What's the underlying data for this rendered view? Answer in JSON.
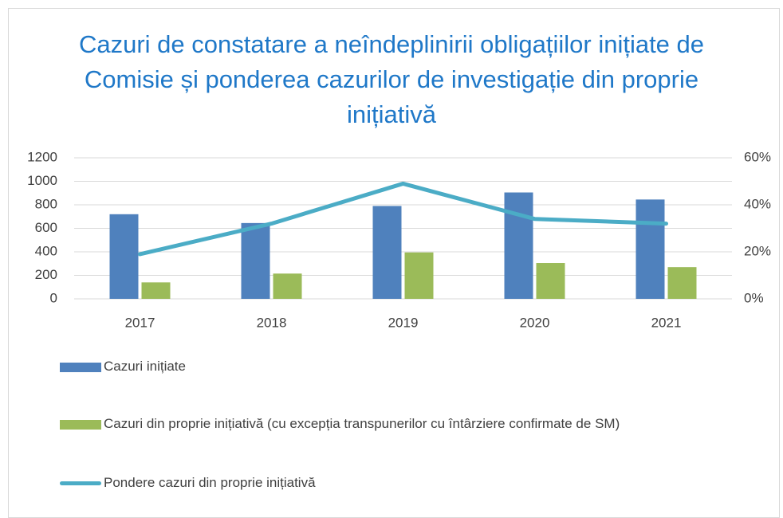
{
  "chart_data": {
    "type": "bar-line",
    "title": "Cazuri de constatare a neîndeplinirii obligațiilor inițiate de Comisie și ponderea cazurilor de investigație din proprie inițiativă",
    "categories": [
      "2017",
      "2018",
      "2019",
      "2020",
      "2021"
    ],
    "series": [
      {
        "name": "Cazuri inițiate",
        "color": "#4f81bd",
        "type": "bar",
        "values": [
          720,
          645,
          790,
          905,
          845
        ]
      },
      {
        "name": "Cazuri din proprie inițiativă (cu excepția transpunerilor cu întârziere confirmate de SM)",
        "color": "#9bbb59",
        "type": "bar",
        "values": [
          140,
          215,
          395,
          305,
          270
        ]
      },
      {
        "name": "Pondere cazuri din proprie inițiativă",
        "color": "#4bacc6",
        "type": "line",
        "axis": "y2",
        "values": [
          19,
          32,
          49,
          34,
          32
        ]
      }
    ],
    "ylim": [
      0,
      1200
    ],
    "yticks": [
      0,
      200,
      400,
      600,
      800,
      1000,
      1200
    ],
    "y2lim": [
      0,
      60
    ],
    "y2ticks": [
      {
        "value": 0,
        "label": "0%"
      },
      {
        "value": 20,
        "label": "20%"
      },
      {
        "value": 40,
        "label": "40%"
      },
      {
        "value": 60,
        "label": "60%"
      }
    ],
    "grid": true,
    "legend": "bottom"
  }
}
